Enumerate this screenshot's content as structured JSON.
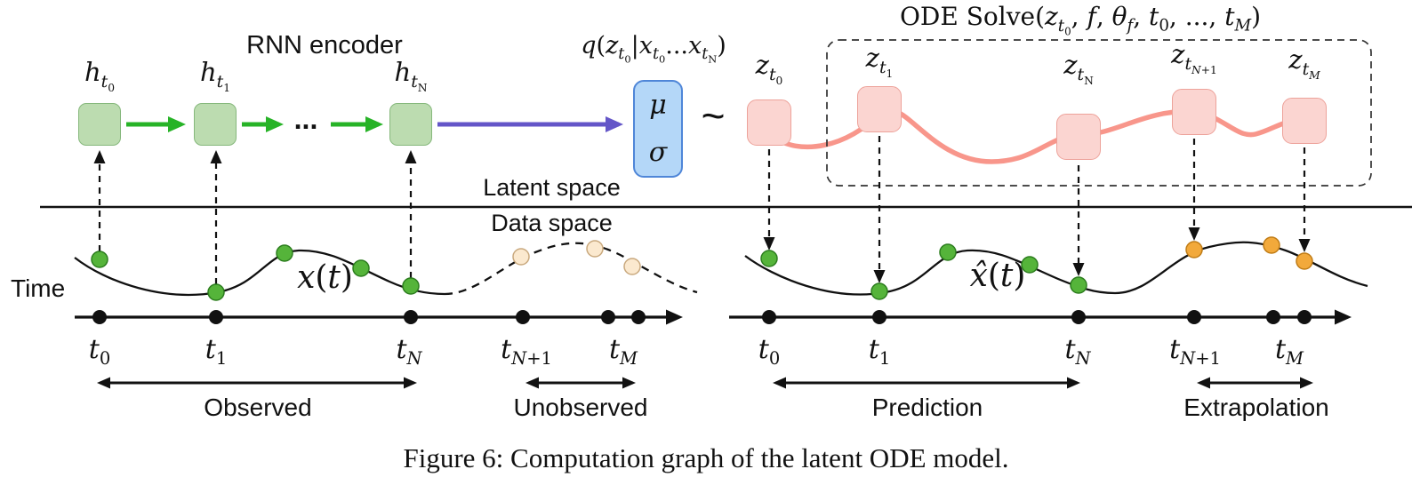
{
  "caption": "Figure 6: Computation graph of the latent ODE model.",
  "labels": {
    "rnn_encoder": "RNN encoder",
    "q_posterior_html": "<i>q</i>(<i>z</i><sub><i>t</i><sub>0</sub></sub>|<i>x</i><sub><i>t</i><sub>0</sub></sub>...<i>x</i><sub><i>t</i><sub>N</sub></sub>)",
    "ode_solve_html": "ODE Solve(<i>z</i><sub><i>t</i><sub>0</sub></sub>, <i>f</i>, <i>θ</i><sub><i>f</i></sub>, <i>t</i><sub>0</sub>, ..., <i>t</i><sub><i>M</i></sub>)",
    "latent_space": "Latent space",
    "data_space": "Data space",
    "time": "Time",
    "mu": "μ",
    "sigma": "σ",
    "tilde": "~",
    "ellipsis": "...",
    "x_of_t_html": "<i>x</i>(<i>t</i>)",
    "xhat_of_t_html": "<i>x̂</i>(<i>t</i>)"
  },
  "h_nodes": [
    {
      "label_html": "<i>h</i><sub><i>t</i><sub>0</sub></sub>"
    },
    {
      "label_html": "<i>h</i><sub><i>t</i><sub>1</sub></sub>"
    },
    {
      "label_html": "<i>h</i><sub><i>t</i><sub>N</sub></sub>"
    }
  ],
  "z_nodes": [
    {
      "label_html": "<i>z</i><sub><i>t</i><sub>0</sub></sub>"
    },
    {
      "label_html": "<i>z</i><sub><i>t</i><sub>1</sub></sub>"
    },
    {
      "label_html": "<i>z</i><sub><i>t</i><sub>N</sub></sub>"
    },
    {
      "label_html": "<i>z</i><sub><i>t</i><sub><i>N</i>+1</sub></sub>"
    },
    {
      "label_html": "<i>z</i><sub><i>t</i><sub><i>M</i></sub></sub>"
    }
  ],
  "timelines": {
    "left": {
      "ticks_html": [
        "<i>t</i><sub>0</sub>",
        "<i>t</i><sub>1</sub>",
        "<i>t</i><sub><i>N</i></sub>",
        "<i>t</i><sub><i>N</i>+1</sub>",
        "<i>t</i><sub><i>M</i></sub>"
      ],
      "regions": [
        {
          "label": "Observed"
        },
        {
          "label": "Unobserved"
        }
      ]
    },
    "right": {
      "ticks_html": [
        "<i>t</i><sub>0</sub>",
        "<i>t</i><sub>1</sub>",
        "<i>t</i><sub><i>N</i></sub>",
        "<i>t</i><sub><i>N</i>+1</sub>",
        "<i>t</i><sub><i>M</i></sub>"
      ],
      "regions": [
        {
          "label": "Prediction"
        },
        {
          "label": "Extrapolation"
        }
      ]
    }
  },
  "colors": {
    "h_box_fill": "#bcdcb0",
    "h_box_border": "#86b87c",
    "rnn_arrow": "#27b327",
    "encoder_arrow": "#6456c8",
    "qz_box_fill": "#b4d7f8",
    "qz_box_border": "#4f86d8",
    "z_box_fill": "#fbd5d1",
    "z_box_border": "#eda29a",
    "ode_trajectory": "#f8968b",
    "observed_dot": "#55b43a",
    "unobserved_dot": "#fbe9cf",
    "extrapolation_dot": "#f2a93b"
  }
}
